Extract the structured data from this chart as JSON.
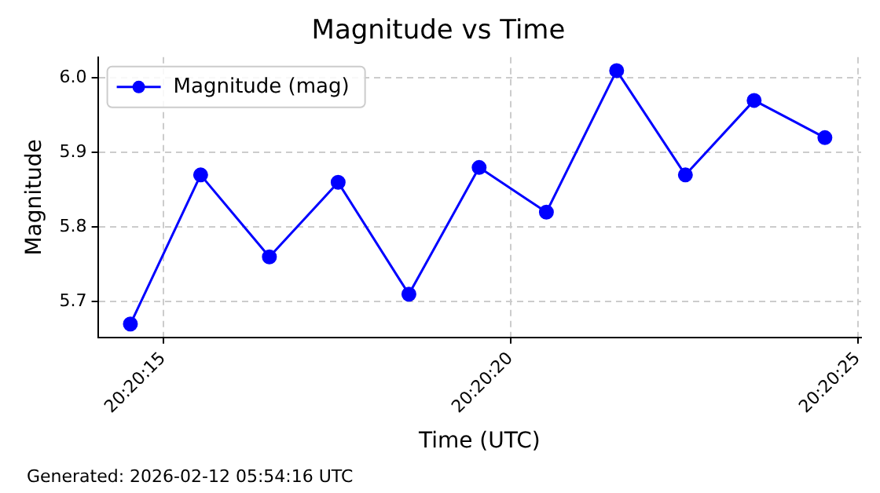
{
  "chart_data": {
    "type": "line",
    "title": "Magnitude vs Time",
    "xlabel": "Time (UTC)",
    "ylabel": "Magnitude",
    "x": [
      20.337369,
      20.33765,
      20.337925,
      20.3382,
      20.338483,
      20.338764,
      20.339033,
      20.339314,
      20.339589,
      20.339864,
      20.340147
    ],
    "series": [
      {
        "name": "Magnitude (mag)",
        "color": "#0000ff",
        "values": [
          5.67,
          5.87,
          5.76,
          5.86,
          5.71,
          5.88,
          5.82,
          6.01,
          5.87,
          5.97,
          5.92
        ]
      }
    ],
    "xlim": [
      20.337239,
      20.340292
    ],
    "xticks": [
      {
        "value": 20.3375,
        "label": "20:20:15"
      },
      {
        "value": 20.338889,
        "label": "20:20:20"
      },
      {
        "value": 20.340278,
        "label": "20:20:25"
      }
    ],
    "ylim": [
      5.652,
      6.028
    ],
    "yticks": [
      5.7,
      5.8,
      5.9,
      {
        "value": 6,
        "label": "6.0"
      }
    ],
    "grid": true,
    "legend": "top left",
    "marker": "circle",
    "line_style": "solid",
    "annotations": [
      "Generated: 2026-02-12 05:54:16 UTC"
    ]
  }
}
